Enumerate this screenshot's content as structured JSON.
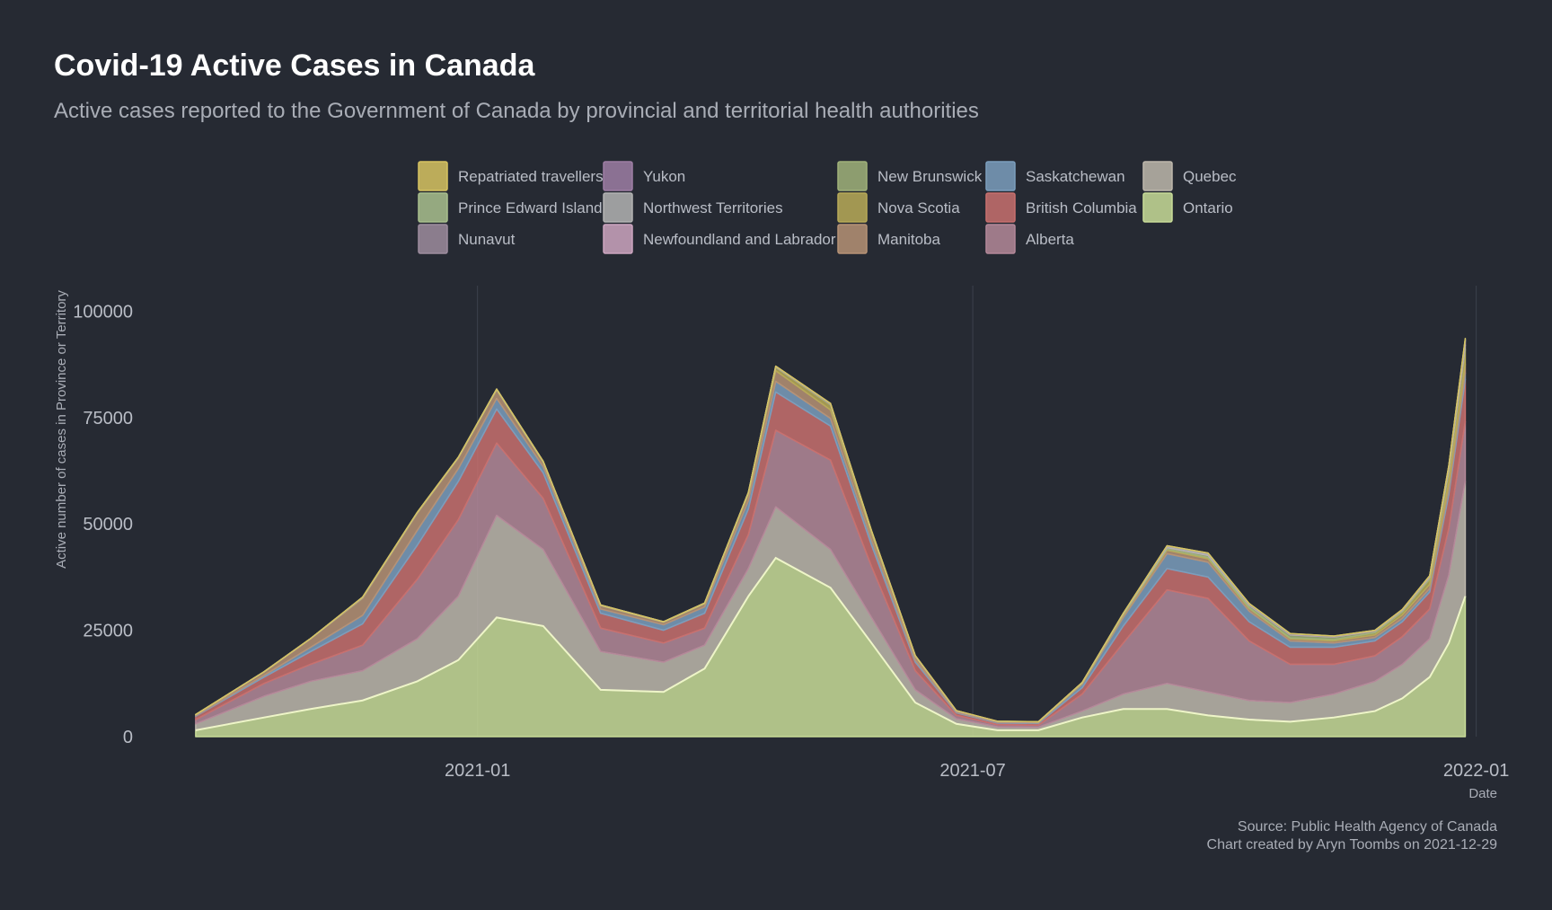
{
  "chart_data": {
    "type": "area",
    "stacked": true,
    "title": "Covid-19 Active Cases in Canada",
    "subtitle": "Active cases reported to the Government of Canada by provincial and territorial health authorities",
    "xlabel": "Date",
    "ylabel": "Active number of cases in Province or Territory",
    "caption_lines": [
      "Source: Public Health Agency of Canada",
      "Chart created by Aryn Toombs on 2021-12-29"
    ],
    "x_ticks": [
      "2021-01",
      "2021-07",
      "2022-01"
    ],
    "y_ticks": [
      0,
      25000,
      50000,
      75000,
      100000
    ],
    "ylim": [
      0,
      106000
    ],
    "xlim": [
      "2020-09-01",
      "2022-01-09"
    ],
    "grid": true,
    "legend_position": "top",
    "x": [
      "2020-09-20",
      "2020-10-15",
      "2020-11-01",
      "2020-11-20",
      "2020-12-10",
      "2020-12-25",
      "2021-01-08",
      "2021-01-25",
      "2021-02-15",
      "2021-03-10",
      "2021-03-25",
      "2021-04-10",
      "2021-04-20",
      "2021-05-10",
      "2021-05-25",
      "2021-06-10",
      "2021-06-25",
      "2021-07-10",
      "2021-07-25",
      "2021-08-10",
      "2021-08-25",
      "2021-09-10",
      "2021-09-25",
      "2021-10-10",
      "2021-10-25",
      "2021-11-10",
      "2021-11-25",
      "2021-12-05",
      "2021-12-15",
      "2021-12-22",
      "2021-12-28"
    ],
    "series": [
      {
        "name": "Ontario",
        "color": "#c8dc98",
        "values": [
          1500,
          4500,
          6500,
          8500,
          13000,
          18000,
          28000,
          26000,
          11000,
          10500,
          16000,
          33000,
          42000,
          35000,
          22000,
          8000,
          3000,
          1500,
          1500,
          4500,
          6500,
          6500,
          5000,
          4000,
          3500,
          4500,
          6000,
          9000,
          14000,
          22000,
          33000
        ]
      },
      {
        "name": "Quebec",
        "color": "#bdb7ac",
        "values": [
          1500,
          5000,
          6500,
          7000,
          10000,
          15000,
          24000,
          18000,
          9000,
          7000,
          5500,
          6500,
          12000,
          9000,
          6000,
          3000,
          1200,
          800,
          700,
          1500,
          3500,
          6000,
          5500,
          4500,
          4500,
          5500,
          7000,
          8000,
          9000,
          16000,
          27000
        ]
      },
      {
        "name": "Alberta",
        "color": "#b48899",
        "values": [
          1000,
          3000,
          4000,
          6000,
          14000,
          18000,
          17000,
          12000,
          5500,
          4500,
          4000,
          8000,
          18000,
          21000,
          12000,
          4500,
          800,
          500,
          500,
          4000,
          12000,
          22000,
          22000,
          14000,
          9000,
          7000,
          6000,
          6500,
          7000,
          11000,
          14000
        ]
      },
      {
        "name": "British Columbia",
        "color": "#c8706e",
        "values": [
          800,
          1500,
          3000,
          5000,
          8000,
          9000,
          8000,
          6000,
          3500,
          3000,
          3500,
          6000,
          9000,
          8000,
          5000,
          2000,
          600,
          400,
          400,
          1500,
          4000,
          5000,
          5000,
          4500,
          4000,
          4000,
          3500,
          3500,
          4000,
          8000,
          10000
        ]
      },
      {
        "name": "Saskatchewan",
        "color": "#7b9ebd",
        "values": [
          150,
          400,
          1000,
          2000,
          3500,
          3000,
          2500,
          1500,
          1000,
          1300,
          1500,
          2000,
          2500,
          1800,
          1200,
          500,
          150,
          120,
          150,
          800,
          2000,
          3500,
          3500,
          2500,
          1500,
          1000,
          800,
          800,
          800,
          1200,
          1500
        ]
      },
      {
        "name": "Manitoba",
        "color": "#b69276",
        "values": [
          200,
          800,
          2000,
          4000,
          4000,
          2500,
          2000,
          1000,
          800,
          600,
          700,
          1500,
          2500,
          2000,
          1500,
          800,
          200,
          150,
          150,
          200,
          500,
          800,
          800,
          600,
          500,
          500,
          600,
          800,
          1000,
          1500,
          2000
        ]
      },
      {
        "name": "Nova Scotia",
        "color": "#b8aa58",
        "values": [
          10,
          20,
          20,
          100,
          80,
          50,
          40,
          20,
          20,
          40,
          80,
          200,
          800,
          1200,
          500,
          100,
          20,
          20,
          30,
          80,
          150,
          250,
          300,
          200,
          200,
          300,
          500,
          700,
          1200,
          2500,
          3500
        ]
      },
      {
        "name": "New Brunswick",
        "color": "#a0b27a",
        "values": [
          10,
          20,
          20,
          50,
          50,
          50,
          100,
          150,
          50,
          30,
          80,
          150,
          150,
          150,
          80,
          50,
          20,
          20,
          30,
          80,
          200,
          400,
          500,
          600,
          700,
          600,
          400,
          400,
          500,
          800,
          1000
        ]
      },
      {
        "name": "Newfoundland and Labrador",
        "color": "#cca5c0",
        "values": [
          10,
          10,
          10,
          20,
          30,
          20,
          20,
          20,
          50,
          20,
          20,
          30,
          40,
          30,
          20,
          10,
          10,
          5,
          5,
          20,
          30,
          40,
          40,
          50,
          60,
          70,
          80,
          100,
          200,
          500,
          1000
        ]
      },
      {
        "name": "Northwest Territories",
        "color": "#b3b3b3",
        "values": [
          2,
          2,
          2,
          5,
          5,
          5,
          5,
          5,
          5,
          2,
          2,
          5,
          10,
          15,
          10,
          5,
          2,
          2,
          2,
          20,
          50,
          300,
          400,
          200,
          100,
          50,
          30,
          30,
          40,
          80,
          150
        ]
      },
      {
        "name": "Yukon",
        "color": "#9e7ea4",
        "values": [
          2,
          2,
          2,
          5,
          10,
          20,
          10,
          5,
          5,
          2,
          2,
          5,
          10,
          20,
          30,
          50,
          100,
          80,
          20,
          10,
          20,
          30,
          40,
          80,
          120,
          80,
          50,
          30,
          30,
          50,
          80
        ]
      },
      {
        "name": "Nunavut",
        "color": "#9d8c9e",
        "values": [
          0,
          0,
          0,
          100,
          50,
          20,
          10,
          5,
          5,
          5,
          5,
          10,
          50,
          100,
          50,
          20,
          5,
          5,
          5,
          5,
          10,
          20,
          20,
          10,
          5,
          5,
          5,
          5,
          10,
          20,
          30
        ]
      },
      {
        "name": "Prince Edward Island",
        "color": "#a9c08e",
        "values": [
          2,
          2,
          2,
          5,
          5,
          5,
          5,
          5,
          5,
          5,
          5,
          10,
          15,
          10,
          5,
          5,
          5,
          5,
          5,
          10,
          20,
          30,
          50,
          60,
          50,
          40,
          30,
          30,
          50,
          150,
          300
        ]
      },
      {
        "name": "Repatriated travellers",
        "color": "#d7c361",
        "values": [
          5,
          5,
          5,
          5,
          5,
          5,
          5,
          5,
          5,
          5,
          5,
          5,
          5,
          5,
          5,
          5,
          5,
          5,
          5,
          5,
          5,
          5,
          5,
          5,
          5,
          5,
          5,
          5,
          5,
          5,
          5
        ]
      }
    ],
    "legend_order": [
      "Repatriated travellers",
      "Prince Edward Island",
      "Nunavut",
      "Yukon",
      "Northwest Territories",
      "Newfoundland and Labrador",
      "New Brunswick",
      "Nova Scotia",
      "Manitoba",
      "Saskatchewan",
      "British Columbia",
      "Alberta",
      "Quebec",
      "Ontario"
    ]
  }
}
